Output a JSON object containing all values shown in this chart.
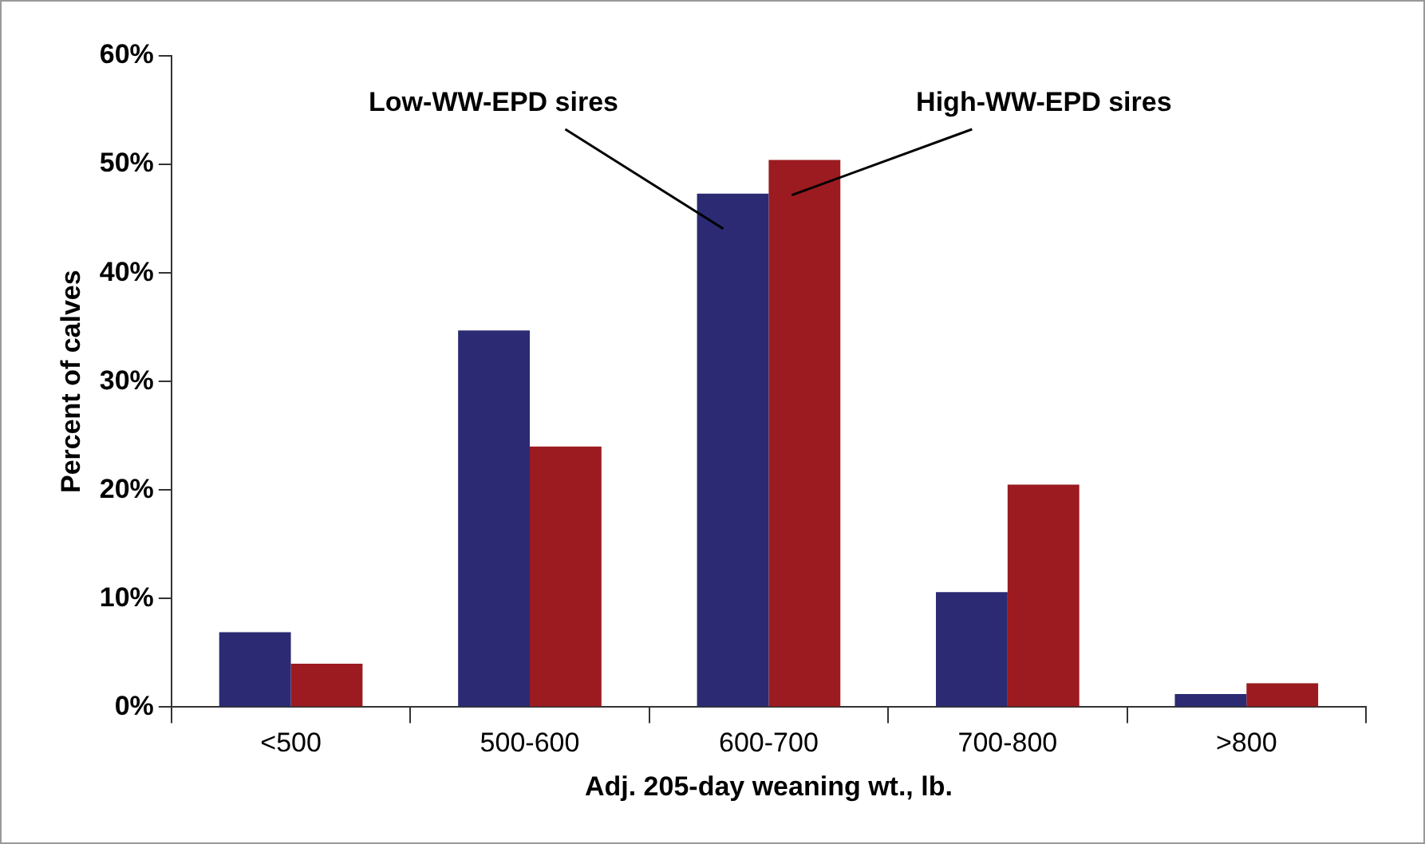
{
  "chart_data": {
    "type": "bar",
    "xlabel": "Adj. 205-day weaning wt., lb.",
    "ylabel": "Percent of calves",
    "categories": [
      "<500",
      "500-600",
      "600-700",
      "700-800",
      ">800"
    ],
    "series": [
      {
        "name": "Low-WW-EPD sires",
        "color": "#2b2a73",
        "values": [
          6.9,
          34.7,
          47.3,
          10.6,
          1.2
        ]
      },
      {
        "name": "High-WW-EPD sires",
        "color": "#9b1b20",
        "values": [
          4.0,
          24.0,
          50.4,
          20.5,
          2.2
        ]
      }
    ],
    "ylim": [
      0,
      60
    ],
    "yticks": [
      {
        "value": 0,
        "label": "0%"
      },
      {
        "value": 10,
        "label": "10%"
      },
      {
        "value": 20,
        "label": "20%"
      },
      {
        "value": 30,
        "label": "30%"
      },
      {
        "value": 40,
        "label": "40%"
      },
      {
        "value": 50,
        "label": "50%"
      },
      {
        "value": 60,
        "label": "60%"
      }
    ],
    "grid": false,
    "legend": false
  }
}
